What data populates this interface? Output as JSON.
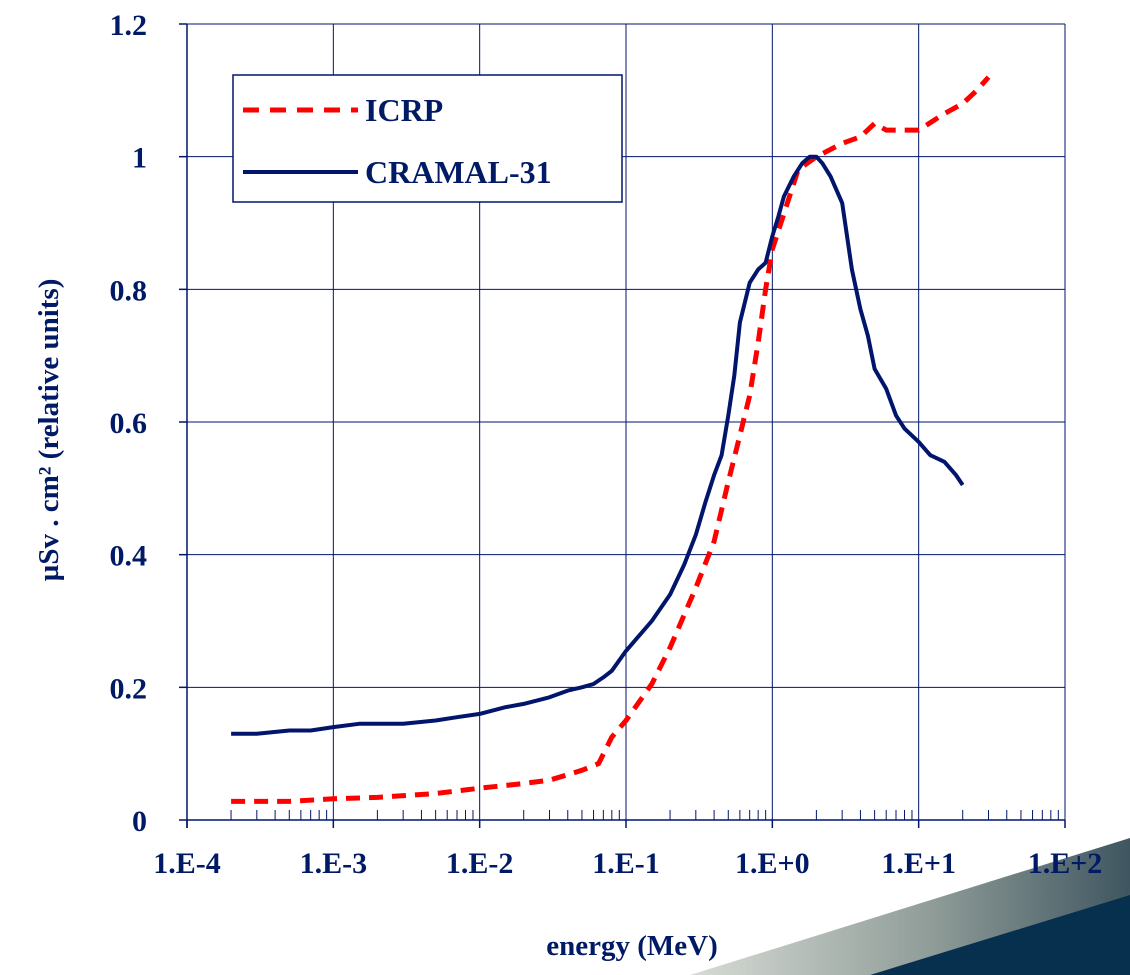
{
  "chart_data": {
    "type": "line",
    "title": "",
    "xlabel": "energy (MeV)",
    "ylabel": "µSv . cm² (relative units)",
    "x_scale": "log",
    "xlim": [
      0.0001,
      100
    ],
    "ylim": [
      0,
      1.2
    ],
    "x_tick_labels": [
      "1.E-4",
      "1.E-3",
      "1.E-2",
      "1.E-1",
      "1.E+0",
      "1.E+1",
      "1.E+2"
    ],
    "y_tick_labels": [
      "0",
      "0.2",
      "0.4",
      "0.6",
      "0.8",
      "1",
      "1.2"
    ],
    "y_ticks": [
      0,
      0.2,
      0.4,
      0.6,
      0.8,
      1.0,
      1.2
    ],
    "grid": true,
    "legend_position": "top-left",
    "series": [
      {
        "name": "ICRP",
        "color": "#ff0000",
        "style": "dashed",
        "x": [
          0.0002,
          0.0005,
          0.001,
          0.002,
          0.005,
          0.01,
          0.02,
          0.03,
          0.05,
          0.065,
          0.08,
          0.1,
          0.15,
          0.2,
          0.3,
          0.4,
          0.5,
          0.6,
          0.7,
          0.8,
          0.9,
          1.0,
          1.5,
          2.0,
          3.0,
          4.0,
          5.0,
          6.0,
          8.0,
          10.0,
          15.0,
          20.0,
          25.0,
          30.0
        ],
        "y": [
          0.028,
          0.028,
          0.032,
          0.034,
          0.04,
          0.048,
          0.055,
          0.06,
          0.075,
          0.085,
          0.125,
          0.15,
          0.205,
          0.26,
          0.35,
          0.42,
          0.51,
          0.58,
          0.64,
          0.72,
          0.8,
          0.86,
          0.98,
          1.0,
          1.02,
          1.03,
          1.05,
          1.04,
          1.04,
          1.04,
          1.065,
          1.08,
          1.1,
          1.12
        ]
      },
      {
        "name": "CRAMAL-31",
        "color": "#00156b",
        "style": "solid",
        "x": [
          0.0002,
          0.0003,
          0.0005,
          0.0007,
          0.001,
          0.0015,
          0.002,
          0.003,
          0.005,
          0.007,
          0.01,
          0.015,
          0.02,
          0.03,
          0.04,
          0.05,
          0.06,
          0.07,
          0.08,
          0.1,
          0.15,
          0.2,
          0.25,
          0.3,
          0.35,
          0.4,
          0.45,
          0.5,
          0.55,
          0.6,
          0.7,
          0.8,
          0.9,
          1.0,
          1.1,
          1.2,
          1.4,
          1.6,
          1.8,
          2.0,
          2.2,
          2.5,
          3.0,
          3.5,
          4.0,
          4.5,
          5.0,
          6.0,
          7.0,
          8.0,
          10.0,
          12.0,
          15.0,
          18.0,
          20.0
        ],
        "y": [
          0.13,
          0.13,
          0.135,
          0.135,
          0.14,
          0.145,
          0.145,
          0.145,
          0.15,
          0.155,
          0.16,
          0.17,
          0.175,
          0.185,
          0.195,
          0.2,
          0.205,
          0.215,
          0.225,
          0.255,
          0.3,
          0.34,
          0.385,
          0.43,
          0.48,
          0.52,
          0.55,
          0.61,
          0.67,
          0.75,
          0.81,
          0.83,
          0.84,
          0.88,
          0.91,
          0.94,
          0.97,
          0.99,
          1.0,
          1.0,
          0.99,
          0.97,
          0.93,
          0.83,
          0.77,
          0.73,
          0.68,
          0.65,
          0.61,
          0.59,
          0.57,
          0.55,
          0.54,
          0.52,
          0.505
        ]
      }
    ]
  }
}
